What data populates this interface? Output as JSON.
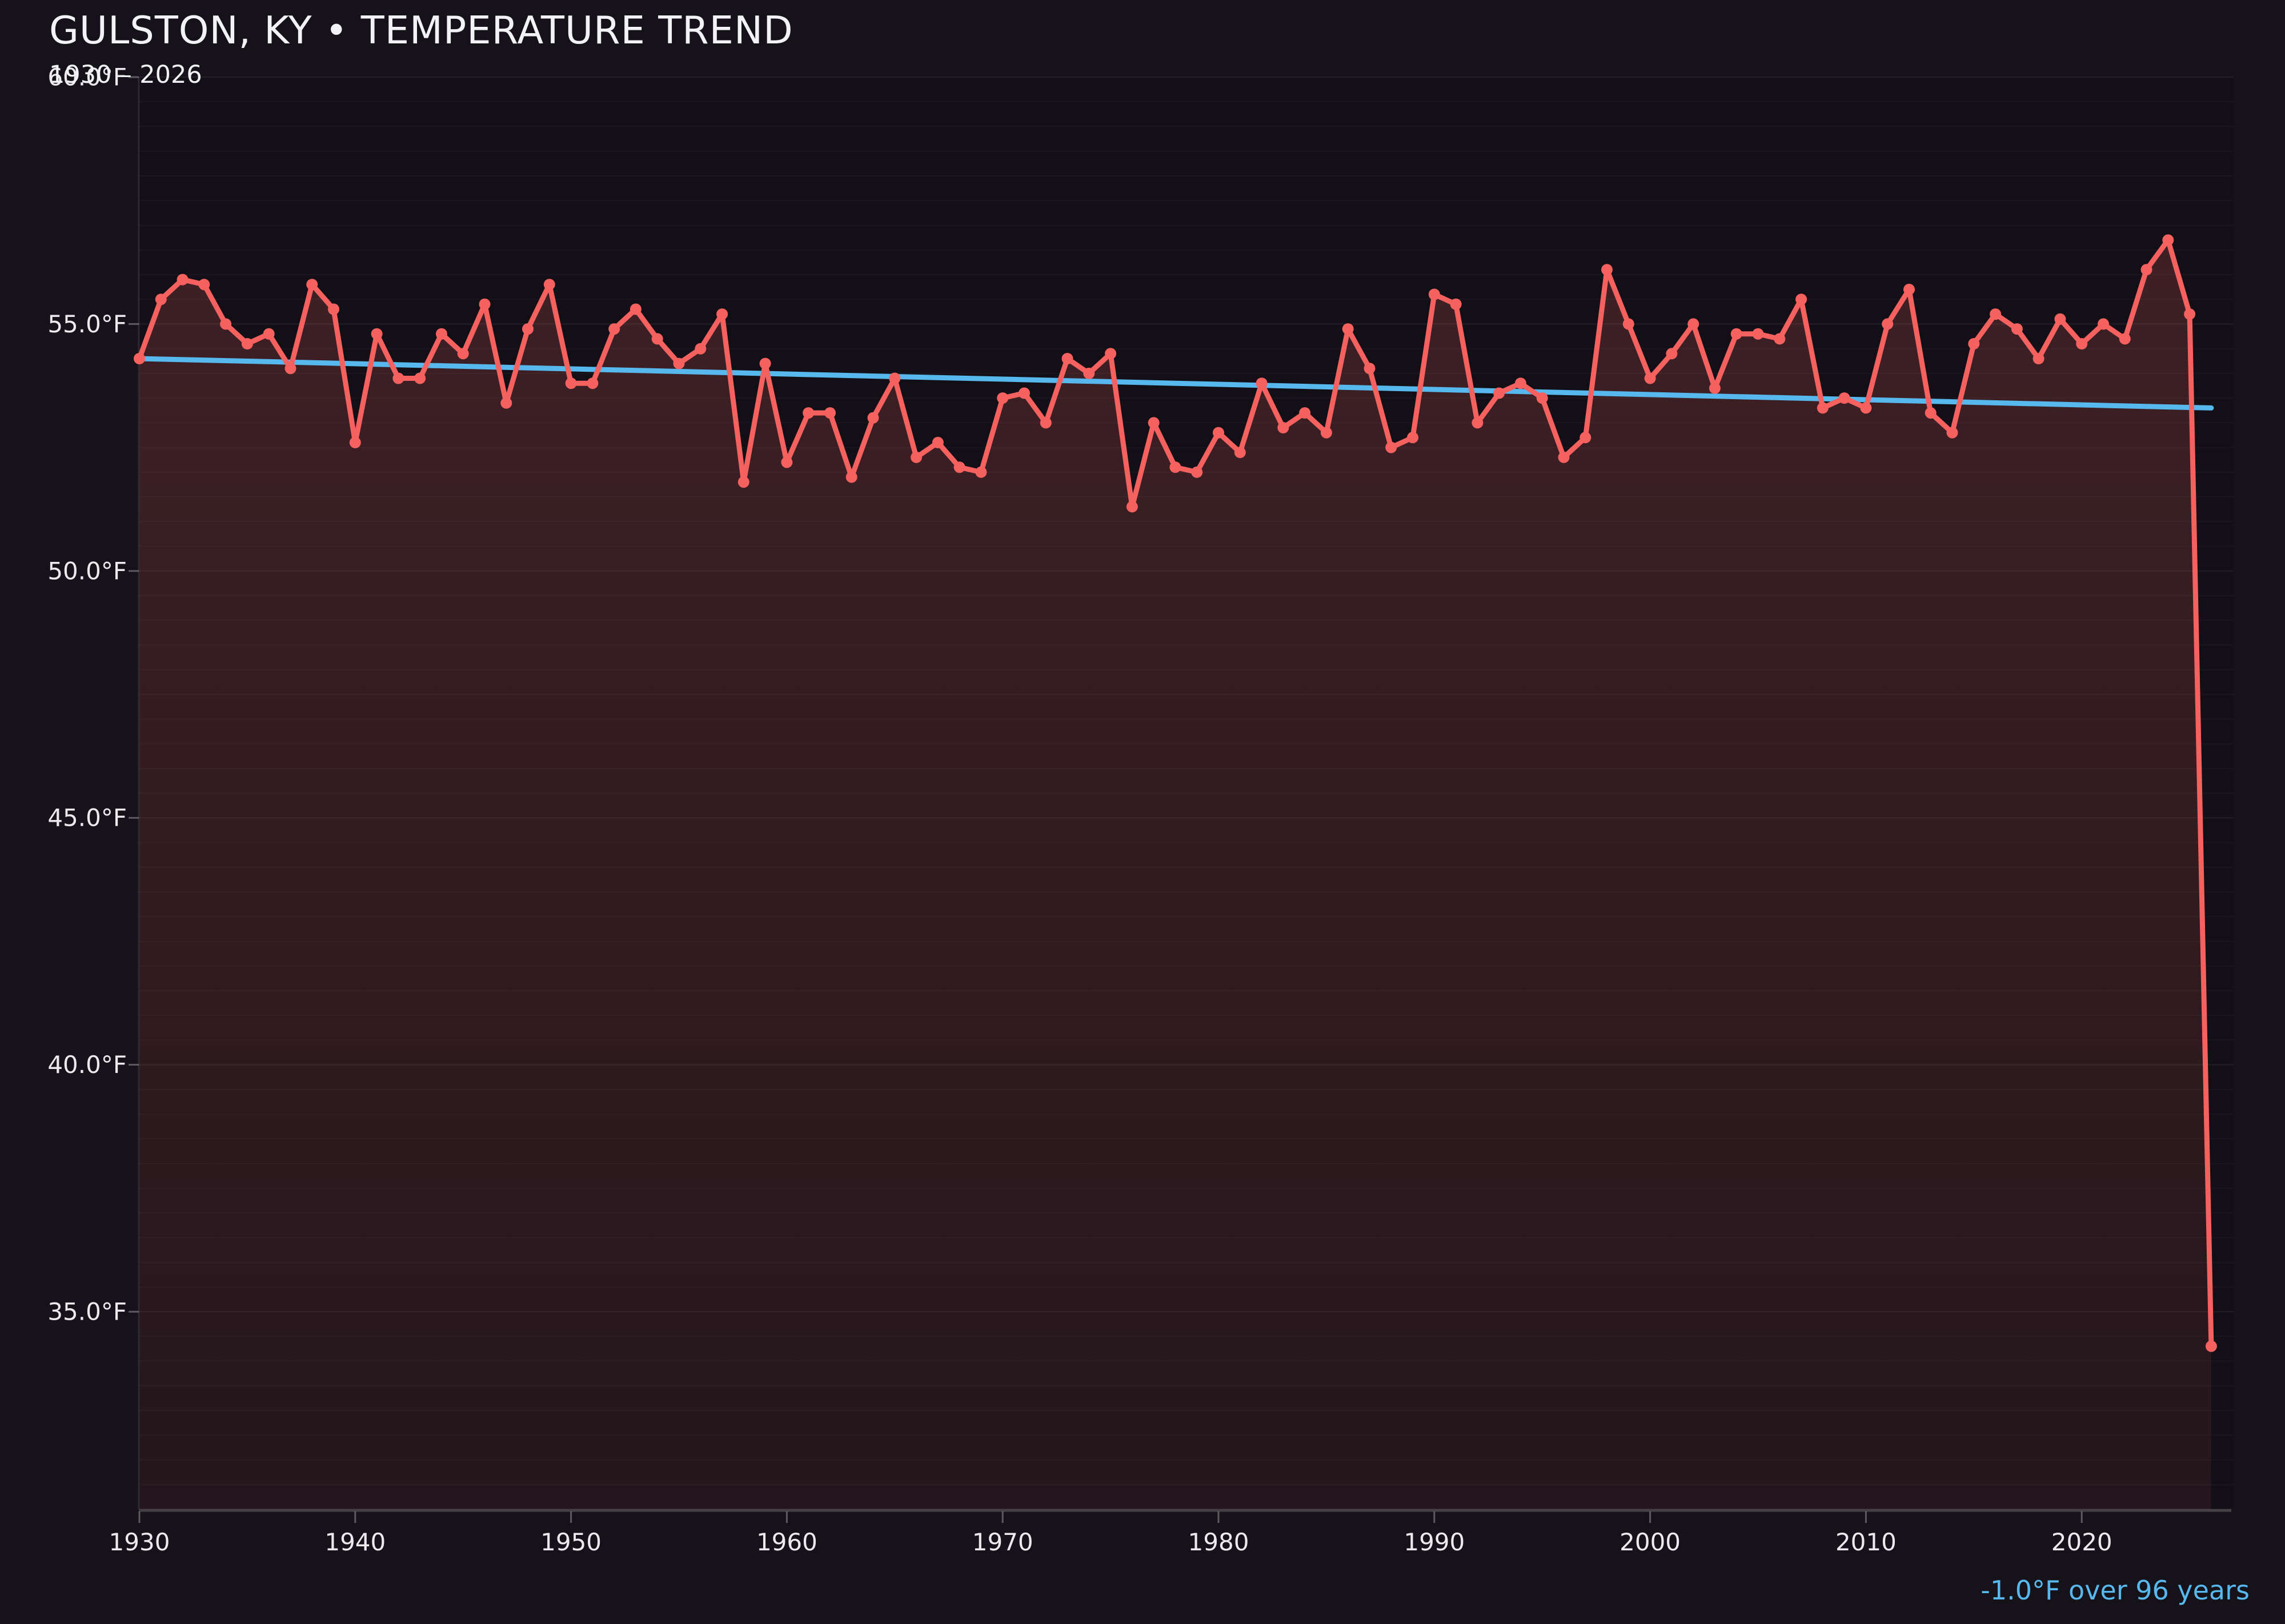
{
  "header": {
    "title": "GULSTON, KY • TEMPERATURE TREND",
    "subtitle": "1930 – 2026"
  },
  "footer": {
    "trend_annotation": "-1.0°F over 96 years"
  },
  "chart_data": {
    "type": "line",
    "title": "GULSTON, KY • TEMPERATURE TREND",
    "subtitle": "1930 – 2026",
    "unit": "°F",
    "x_label": "year",
    "start_year": 1930,
    "end_year": 2026,
    "values": [
      54.3,
      55.5,
      55.9,
      55.8,
      55.0,
      54.6,
      54.8,
      54.1,
      55.8,
      55.3,
      52.6,
      54.8,
      53.9,
      53.9,
      54.8,
      54.4,
      55.4,
      53.4,
      54.9,
      55.8,
      53.8,
      53.8,
      54.9,
      55.3,
      54.7,
      54.2,
      54.5,
      55.2,
      51.8,
      54.2,
      52.2,
      53.2,
      53.2,
      51.9,
      53.1,
      53.9,
      52.3,
      52.6,
      52.1,
      52.0,
      53.5,
      53.6,
      53.0,
      54.3,
      54.0,
      54.4,
      51.3,
      53.0,
      52.1,
      52.0,
      52.8,
      52.4,
      53.8,
      52.9,
      53.2,
      52.8,
      54.9,
      54.1,
      52.5,
      52.7,
      55.6,
      55.4,
      53.0,
      53.6,
      53.8,
      53.5,
      52.3,
      52.7,
      56.1,
      55.0,
      53.9,
      54.4,
      55.0,
      53.7,
      54.8,
      54.8,
      54.7,
      55.5,
      53.3,
      53.5,
      53.3,
      55.0,
      55.7,
      53.2,
      52.8,
      54.6,
      55.2,
      54.9,
      54.3,
      55.1,
      54.6,
      55.0,
      54.7,
      56.1,
      56.7,
      55.2,
      34.3
    ],
    "trend": {
      "start_f": 54.3,
      "end_f": 53.3,
      "label": "-1.0°F over 96 years"
    },
    "yticks": [
      {
        "value": 60,
        "label": "60.0°F"
      },
      {
        "value": 55,
        "label": "55.0°F"
      },
      {
        "value": 50,
        "label": "50.0°F"
      },
      {
        "value": 45,
        "label": "45.0°F"
      },
      {
        "value": 40,
        "label": "40.0°F"
      },
      {
        "value": 35,
        "label": "35.0°F"
      }
    ],
    "xticks": [
      {
        "value": 1930,
        "label": "1930"
      },
      {
        "value": 1940,
        "label": "1940"
      },
      {
        "value": 1950,
        "label": "1950"
      },
      {
        "value": 1960,
        "label": "1960"
      },
      {
        "value": 1970,
        "label": "1970"
      },
      {
        "value": 1980,
        "label": "1980"
      },
      {
        "value": 1990,
        "label": "1990"
      },
      {
        "value": 2000,
        "label": "2000"
      },
      {
        "value": 2010,
        "label": "2010"
      },
      {
        "value": 2020,
        "label": "2020"
      }
    ],
    "ylim": [
      31,
      60
    ],
    "xlim": [
      1930,
      2027
    ],
    "grid": {
      "horizontal_minor_step_f": 0.5,
      "vertical": false
    },
    "legend": "none",
    "colors": {
      "background": "#16121a",
      "plot_background": "#121016",
      "series_line": "#f4615f",
      "area_fill_top": "rgba(244,97,95,0.21)",
      "area_fill_bottom": "rgba(244,97,95,0.08)",
      "trend_line": "#57b8ed",
      "grid_major": "rgba(255,255,255,0.065)",
      "grid_minor": "rgba(255,255,255,0.03)",
      "axis_spine_left": "rgba(255,255,255,0.10)",
      "axis_spine_bottom": "rgba(255,255,255,0.20)",
      "tick_mark": "rgba(255,255,255,0.30)",
      "tick_text": "#eceaee",
      "title_text": "#f3f2f5",
      "annotation_text": "#57b8ed"
    }
  }
}
